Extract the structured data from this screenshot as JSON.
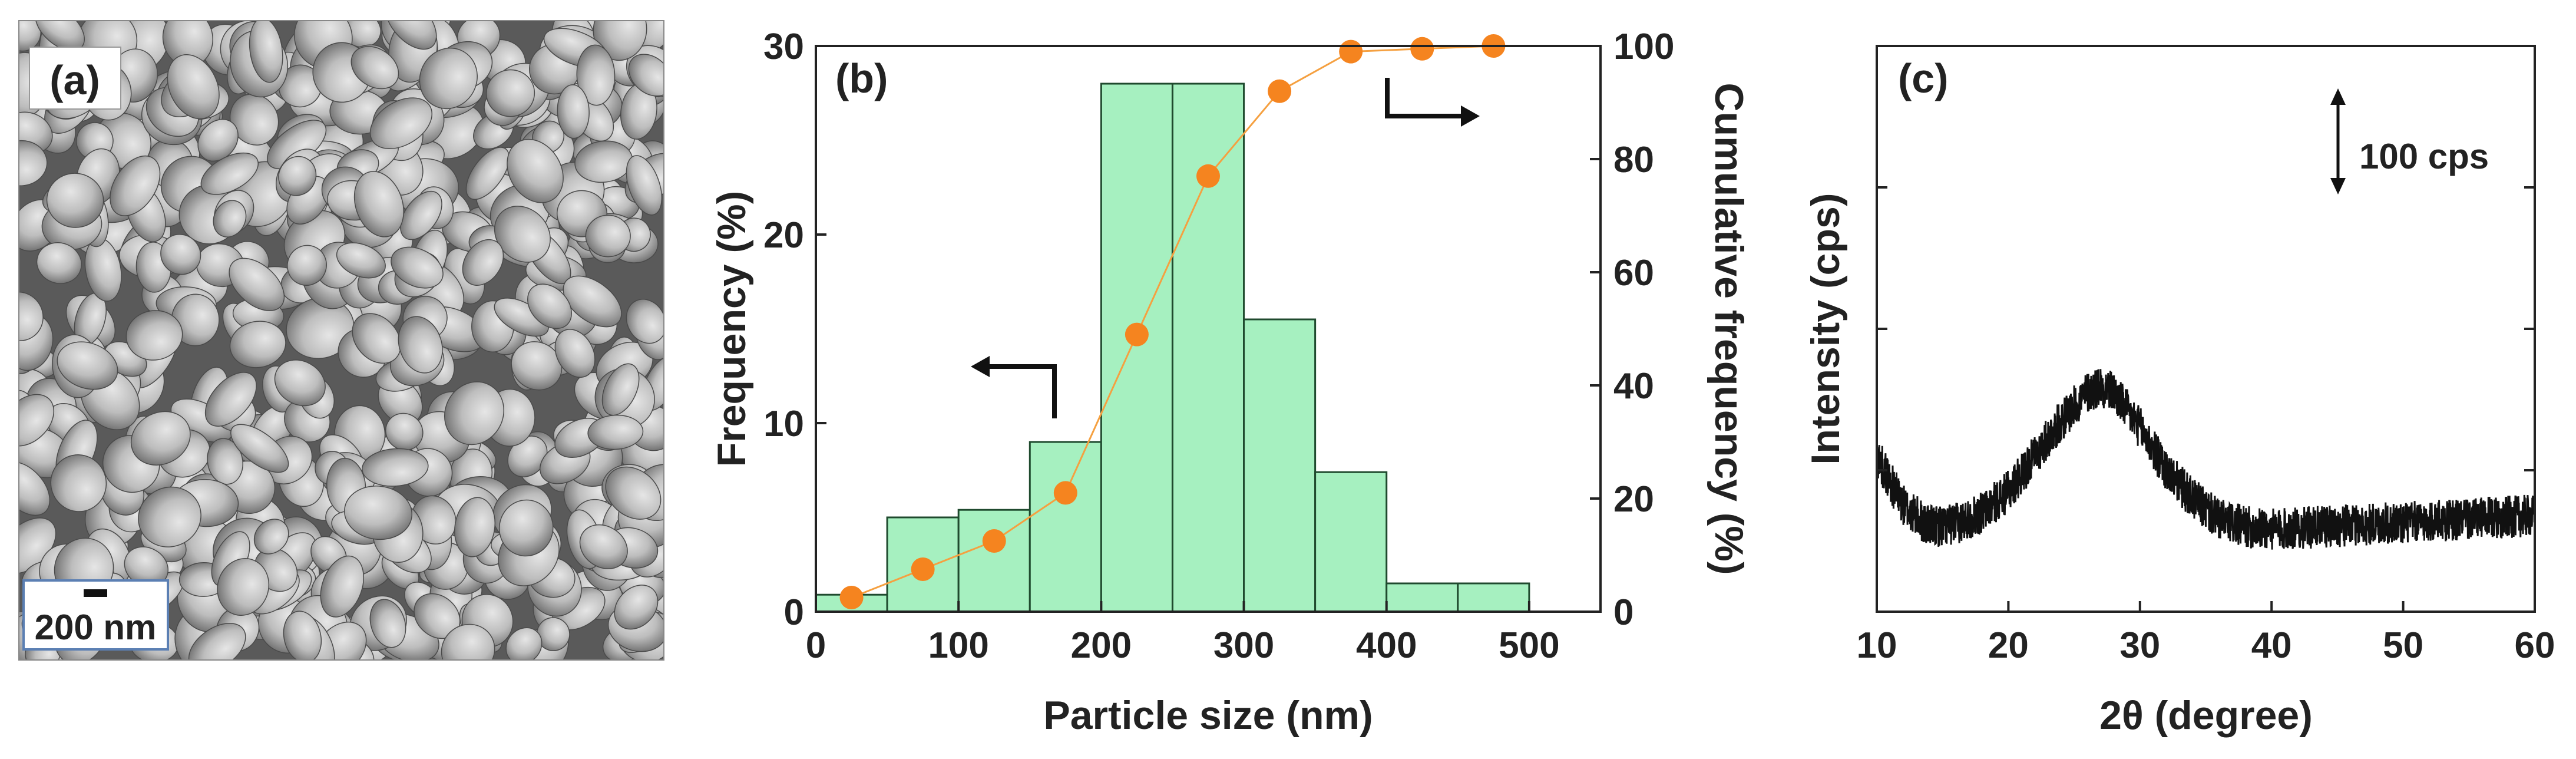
{
  "panels": {
    "a": {
      "label": "(a)",
      "scale_bar": "200 nm",
      "image_desc_icon": "sem-micrograph"
    },
    "b": {
      "label": "(b)"
    },
    "c": {
      "label": "(c)",
      "scale_annotation": "100 cps"
    }
  },
  "colors": {
    "bar_fill": "#a6f0c0",
    "bar_edge": "#1f4a2e",
    "marker": "#f5841f",
    "line": "#f5a040",
    "xrd": "#111111"
  },
  "chart_data": [
    {
      "type": "bar",
      "panel": "b",
      "xlabel": "Particle size (nm)",
      "ylabel": "Frequency (%)",
      "y2label": "Cumulative frequency (%)",
      "xlim": [
        0,
        550
      ],
      "ylim": [
        0,
        30
      ],
      "y2lim": [
        0,
        100
      ],
      "xticks": [
        0,
        100,
        200,
        300,
        400,
        500
      ],
      "yticks": [
        0,
        10,
        20,
        30
      ],
      "y2ticks": [
        0,
        20,
        40,
        60,
        80,
        100
      ],
      "bin_edges": [
        0,
        50,
        100,
        150,
        200,
        250,
        300,
        350,
        400,
        450,
        500
      ],
      "values": [
        0.9,
        5.0,
        5.4,
        9.0,
        28.0,
        28.0,
        15.5,
        7.4,
        1.5,
        1.5
      ],
      "cumulative": {
        "x": [
          25,
          75,
          125,
          175,
          225,
          275,
          325,
          375,
          425,
          475
        ],
        "y": [
          2.5,
          7.5,
          12.5,
          21,
          49,
          77,
          92,
          99,
          99.5,
          100
        ]
      },
      "annotations": [
        {
          "text": "arrow-left",
          "meaning": "Frequency axis"
        },
        {
          "text": "arrow-right",
          "meaning": "Cumulative axis"
        }
      ]
    },
    {
      "type": "line",
      "panel": "c",
      "xlabel": "2θ (degree)",
      "ylabel": "Intensity (cps)",
      "xlim": [
        10,
        60
      ],
      "xticks": [
        10,
        20,
        30,
        40,
        50,
        60
      ],
      "ylim": [
        0,
        4
      ],
      "yticks_labeled": false,
      "profile": {
        "x": [
          10,
          12,
          14,
          16,
          18,
          20,
          22,
          24,
          26,
          27,
          28,
          30,
          32,
          34,
          36,
          38,
          40,
          44,
          48,
          52,
          56,
          60
        ],
        "y": [
          1.1,
          0.75,
          0.6,
          0.62,
          0.7,
          0.85,
          1.1,
          1.35,
          1.55,
          1.6,
          1.55,
          1.3,
          1.0,
          0.8,
          0.65,
          0.6,
          0.58,
          0.6,
          0.62,
          0.64,
          0.66,
          0.68
        ]
      },
      "noise_amplitude": 0.15
    }
  ]
}
